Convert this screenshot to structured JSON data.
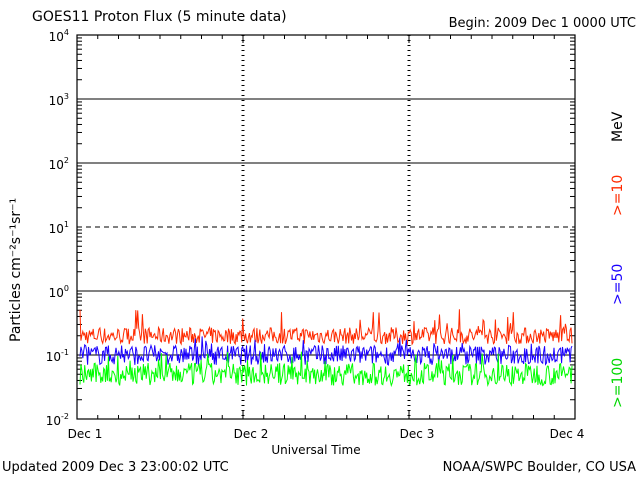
{
  "header": {
    "title": "GOES11 Proton Flux (5 minute data)",
    "begin": "Begin: 2009 Dec 1 0000 UTC"
  },
  "footer": {
    "updated": "Updated 2009 Dec  3 23:00:02 UTC",
    "credit": "NOAA/SWPC Boulder, CO USA"
  },
  "colors": {
    "ge10": "#ff2a00",
    "ge50": "#1a00ff",
    "ge100": "#00ff00",
    "axis": "#000000",
    "background": "#ffffff"
  },
  "chart_data": {
    "type": "line",
    "title": "GOES11 Proton Flux (5 minute data)",
    "xlabel": "Universal Time",
    "ylabel": "Particles cm⁻²s⁻¹sr⁻¹",
    "y_scale": "log",
    "ylim": [
      0.01,
      10000
    ],
    "x_ticks": [
      "Dec 1",
      "Dec 2",
      "Dec 3",
      "Dec 4"
    ],
    "y_ticks": [
      {
        "value": 0.01,
        "base": "10",
        "exp": "-2"
      },
      {
        "value": 0.1,
        "base": "10",
        "exp": "-1"
      },
      {
        "value": 1,
        "base": "10",
        "exp": "0"
      },
      {
        "value": 10,
        "base": "10",
        "exp": "1"
      },
      {
        "value": 100,
        "base": "10",
        "exp": "2"
      },
      {
        "value": 1000,
        "base": "10",
        "exp": "3"
      },
      {
        "value": 10000,
        "base": "10",
        "exp": "4"
      }
    ],
    "energy_unit": "MeV",
    "series": [
      {
        "name": ">=10",
        "color": "#ff2a00",
        "x": [
          "2009-12-01",
          "2009-12-04"
        ],
        "typical": 0.2,
        "range": [
          0.13,
          0.55
        ]
      },
      {
        "name": ">=50",
        "color": "#1a00ff",
        "x": [
          "2009-12-01",
          "2009-12-04"
        ],
        "typical": 0.1,
        "range": [
          0.06,
          0.2
        ]
      },
      {
        "name": ">=100",
        "color": "#00ff00",
        "x": [
          "2009-12-01",
          "2009-12-04"
        ],
        "typical": 0.05,
        "range": [
          0.028,
          0.12
        ]
      }
    ]
  }
}
